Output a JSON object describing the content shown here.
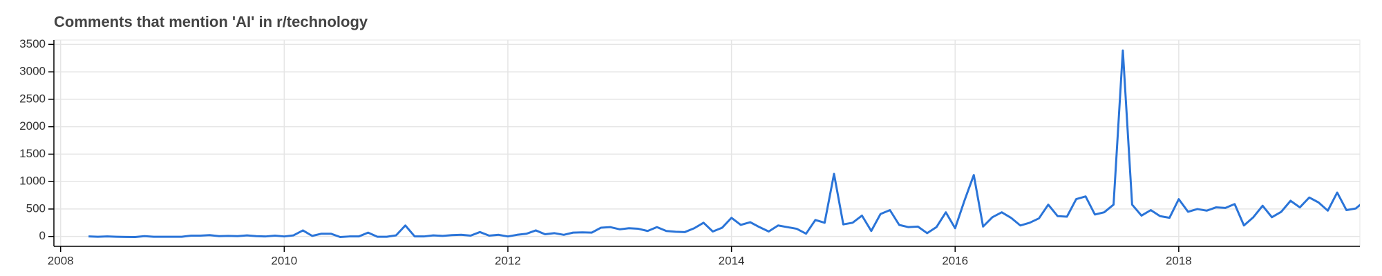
{
  "chart_data": {
    "type": "line",
    "title": "Comments that mention 'AI' in r/technology",
    "x": [
      2008.25,
      2008.333,
      2008.417,
      2008.5,
      2008.583,
      2008.667,
      2008.75,
      2008.833,
      2008.917,
      2009,
      2009.083,
      2009.167,
      2009.25,
      2009.333,
      2009.417,
      2009.5,
      2009.583,
      2009.667,
      2009.75,
      2009.833,
      2009.917,
      2010,
      2010.083,
      2010.167,
      2010.25,
      2010.333,
      2010.417,
      2010.5,
      2010.583,
      2010.667,
      2010.75,
      2010.833,
      2010.917,
      2011,
      2011.083,
      2011.167,
      2011.25,
      2011.333,
      2011.417,
      2011.5,
      2011.583,
      2011.667,
      2011.75,
      2011.833,
      2011.917,
      2012,
      2012.083,
      2012.167,
      2012.25,
      2012.333,
      2012.417,
      2012.5,
      2012.583,
      2012.667,
      2012.75,
      2012.833,
      2012.917,
      2013,
      2013.083,
      2013.167,
      2013.25,
      2013.333,
      2013.417,
      2013.5,
      2013.583,
      2013.667,
      2013.75,
      2013.833,
      2013.917,
      2014,
      2014.083,
      2014.167,
      2014.25,
      2014.333,
      2014.417,
      2014.5,
      2014.583,
      2014.667,
      2014.75,
      2014.833,
      2014.917,
      2015,
      2015.083,
      2015.167,
      2015.25,
      2015.333,
      2015.417,
      2015.5,
      2015.583,
      2015.667,
      2015.75,
      2015.833,
      2015.917,
      2016,
      2016.083,
      2016.167,
      2016.25,
      2016.333,
      2016.417,
      2016.5,
      2016.583,
      2016.667,
      2016.75,
      2016.833,
      2016.917,
      2017,
      2017.083,
      2017.167,
      2017.25,
      2017.333,
      2017.417,
      2017.5,
      2017.583,
      2017.667,
      2017.75,
      2017.833,
      2017.917,
      2018,
      2018.083,
      2018.167,
      2018.25,
      2018.333,
      2018.417,
      2018.5,
      2018.583,
      2018.667,
      2018.75,
      2018.833,
      2018.917,
      2019,
      2019.083,
      2019.167,
      2019.25,
      2019.333,
      2019.417,
      2019.5,
      2019.583,
      2019.667
    ],
    "series": [
      {
        "color": "#2a74d8",
        "values": [
          0,
          -5,
          0,
          -5,
          -8,
          -10,
          5,
          -5,
          -5,
          -5,
          -5,
          15,
          15,
          25,
          5,
          10,
          5,
          20,
          5,
          0,
          15,
          0,
          20,
          110,
          10,
          50,
          50,
          -10,
          0,
          0,
          70,
          -5,
          -5,
          20,
          200,
          0,
          0,
          20,
          10,
          25,
          30,
          15,
          80,
          15,
          30,
          0,
          30,
          50,
          110,
          40,
          60,
          30,
          70,
          75,
          70,
          160,
          170,
          130,
          150,
          140,
          100,
          170,
          100,
          85,
          80,
          150,
          250,
          90,
          160,
          340,
          210,
          260,
          170,
          90,
          200,
          170,
          140,
          50,
          300,
          250,
          1140,
          220,
          250,
          380,
          100,
          410,
          480,
          210,
          170,
          180,
          60,
          170,
          440,
          150,
          650,
          1120,
          180,
          350,
          440,
          340,
          200,
          250,
          330,
          580,
          370,
          360,
          680,
          730,
          400,
          440,
          580,
          3390,
          580,
          380,
          480,
          370,
          340,
          680,
          450,
          500,
          470,
          530,
          520,
          590,
          200,
          350,
          560,
          350,
          450,
          650,
          530,
          710,
          620,
          470,
          800,
          480,
          510,
          650
        ]
      }
    ],
    "xlim": [
      2007.94,
      2019.62
    ],
    "xticks": [
      2008,
      2010,
      2012,
      2014,
      2016,
      2018
    ],
    "ylim": [
      -180,
      3580
    ],
    "yticks": [
      0,
      500,
      1000,
      1500,
      2000,
      2500,
      3000,
      3500
    ],
    "grid": true
  }
}
